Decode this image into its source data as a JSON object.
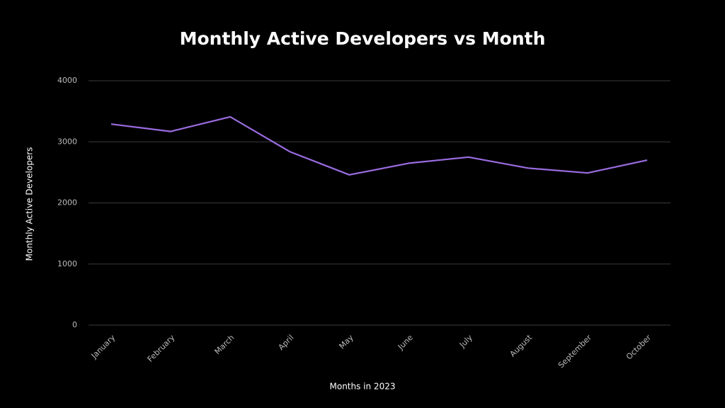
{
  "chart_data": {
    "type": "line",
    "title": "Monthly Active Developers vs Month",
    "x_label": "Months in 2023",
    "y_label": "Monthly Active Developers",
    "categories": [
      "January",
      "February",
      "March",
      "April",
      "May",
      "June",
      "July",
      "August",
      "September",
      "October"
    ],
    "series": [
      {
        "name": "Monthly Active Developers",
        "color": "#9a6ce0",
        "values": [
          3290,
          3170,
          3410,
          2840,
          2460,
          2650,
          2750,
          2570,
          2490,
          2700
        ]
      }
    ],
    "ylim": [
      0,
      4000
    ],
    "yticks": [
      0,
      1000,
      2000,
      3000,
      4000
    ],
    "grid": true
  }
}
